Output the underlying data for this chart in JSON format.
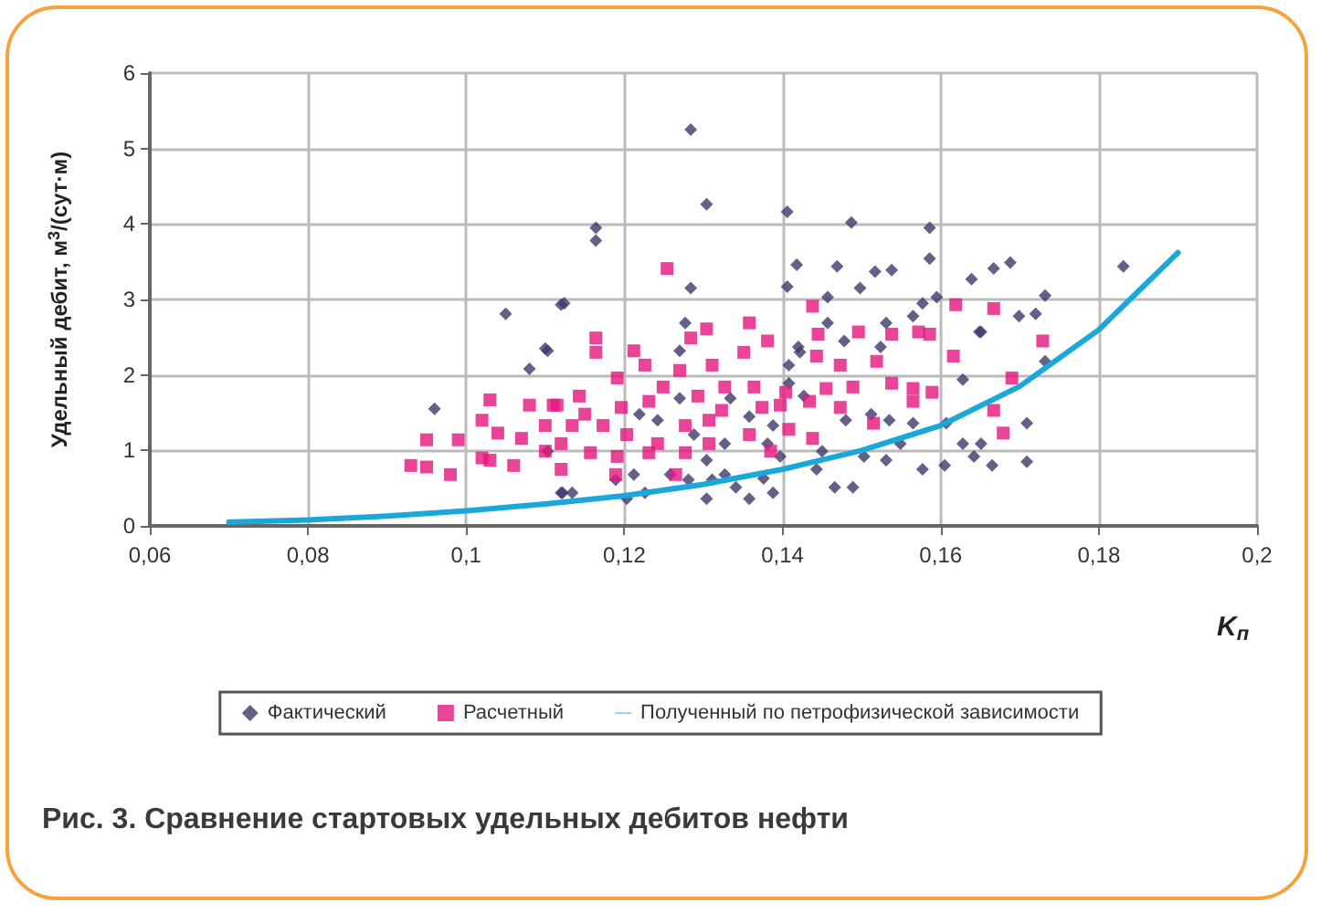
{
  "chart_data": {
    "type": "scatter",
    "title": "Рис. 3. Сравнение стартовых удельных дебитов нефти",
    "xlabel": "K$_{п}$",
    "ylabel": "Удельный дебит, м$^{3}$/(сут·м)",
    "xlim": [
      0.06,
      0.2
    ],
    "ylim": [
      0,
      6
    ],
    "xticks": [
      {
        "value": 0.06,
        "label": "0,06"
      },
      {
        "value": 0.08,
        "label": "0,08"
      },
      {
        "value": 0.1,
        "label": "0,1"
      },
      {
        "value": 0.12,
        "label": "0,12"
      },
      {
        "value": 0.14,
        "label": "0,14"
      },
      {
        "value": 0.16,
        "label": "0,16"
      },
      {
        "value": 0.18,
        "label": "0,18"
      },
      {
        "value": 0.2,
        "label": "0,2"
      }
    ],
    "yticks": [
      0,
      1,
      2,
      3,
      4,
      5,
      6
    ],
    "grid": true,
    "legend": "bottom",
    "series": [
      {
        "name": "Фактический",
        "marker": "diamond",
        "color": "#3d3a6b",
        "x": [
          0.105,
          0.112,
          0.11,
          0.108,
          0.096,
          0.112,
          0.1284,
          0.1304,
          0.1164,
          0.1164,
          0.1406,
          0.1487,
          0.1586,
          0.1586,
          0.1418,
          0.1469,
          0.1517,
          0.1538,
          0.1639,
          0.1284,
          0.1124,
          0.1406,
          0.1498,
          0.1457,
          0.1577,
          0.1595,
          0.1651,
          0.1565,
          0.1277,
          0.1457,
          0.1531,
          0.1103,
          0.127,
          0.1478,
          0.142,
          0.1408,
          0.1524,
          0.1628,
          0.1219,
          0.1288,
          0.1327,
          0.1304,
          0.1327,
          0.1304,
          0.1341,
          0.1376,
          0.1397,
          0.1388,
          0.1358,
          0.1226,
          0.1203,
          0.1122,
          0.1134,
          0.1258,
          0.1281,
          0.1311,
          0.1443,
          0.145,
          0.1466,
          0.1489,
          0.1503,
          0.1531,
          0.1549,
          0.1565,
          0.1577,
          0.1605,
          0.1628,
          0.1642,
          0.1607,
          0.1381,
          0.1358,
          0.1408,
          0.1427,
          0.1422,
          0.1242,
          0.127,
          0.1334,
          0.148,
          0.1512,
          0.1535,
          0.1212,
          0.1189,
          0.1103,
          0.1388,
          0.1831,
          0.1688,
          0.1667,
          0.1732,
          0.1699,
          0.172,
          0.1649,
          0.1732,
          0.1709,
          0.1709,
          0.1665,
          0.1651
        ],
        "values": [
          2.81,
          2.93,
          2.35,
          2.08,
          1.55,
          0.44,
          5.25,
          4.26,
          3.95,
          3.78,
          4.16,
          4.02,
          3.95,
          3.54,
          3.46,
          3.44,
          3.37,
          3.39,
          3.27,
          3.15,
          2.95,
          3.17,
          3.15,
          3.03,
          2.95,
          3.03,
          2.57,
          2.78,
          2.69,
          2.69,
          2.69,
          2.32,
          2.32,
          2.45,
          2.37,
          2.13,
          2.37,
          1.94,
          1.48,
          1.21,
          1.09,
          0.87,
          0.68,
          0.36,
          0.51,
          0.63,
          0.92,
          0.44,
          0.36,
          0.44,
          0.36,
          0.44,
          0.44,
          0.68,
          0.61,
          0.61,
          0.75,
          0.99,
          0.51,
          0.51,
          0.92,
          0.87,
          1.09,
          1.36,
          0.75,
          0.8,
          1.09,
          0.92,
          1.36,
          1.09,
          1.45,
          1.89,
          1.72,
          2.3,
          1.4,
          1.69,
          1.69,
          1.4,
          1.48,
          1.4,
          0.68,
          0.61,
          0.99,
          1.33,
          3.44,
          3.49,
          3.41,
          3.05,
          2.78,
          2.81,
          2.57,
          2.18,
          1.36,
          0.85,
          0.8,
          1.09
        ]
      },
      {
        "name": "Расчетный",
        "marker": "square",
        "color": "#e5157f",
        "x": [
          0.093,
          0.095,
          0.095,
          0.098,
          0.099,
          0.102,
          0.103,
          0.103,
          0.102,
          0.104,
          0.106,
          0.108,
          0.107,
          0.11,
          0.11,
          0.111,
          0.112,
          0.1254,
          0.1438,
          0.1619,
          0.1164,
          0.1164,
          0.1586,
          0.1572,
          0.1616,
          0.1358,
          0.1304,
          0.1284,
          0.1212,
          0.1226,
          0.1191,
          0.127,
          0.1311,
          0.1351,
          0.1381,
          0.1445,
          0.1496,
          0.1538,
          0.1473,
          0.1443,
          0.1519,
          0.1565,
          0.1589,
          0.1538,
          0.1489,
          0.1455,
          0.1404,
          0.1364,
          0.1327,
          0.1293,
          0.1249,
          0.1231,
          0.1196,
          0.115,
          0.1115,
          0.1134,
          0.1173,
          0.1203,
          0.1242,
          0.1277,
          0.1307,
          0.1323,
          0.1374,
          0.1397,
          0.1434,
          0.1473,
          0.1515,
          0.1438,
          0.1408,
          0.1358,
          0.1307,
          0.1277,
          0.1231,
          0.1191,
          0.1157,
          0.112,
          0.1189,
          0.1265,
          0.1385,
          0.1565,
          0.1143,
          0.1667,
          0.1729,
          0.169,
          0.1667,
          0.1679
        ],
        "values": [
          0.8,
          0.78,
          1.14,
          0.68,
          1.14,
          0.9,
          0.87,
          1.67,
          1.4,
          1.23,
          0.8,
          1.6,
          1.16,
          1.33,
          0.99,
          1.6,
          0.75,
          3.41,
          2.91,
          2.93,
          2.49,
          2.3,
          2.54,
          2.57,
          2.25,
          2.69,
          2.61,
          2.49,
          2.32,
          2.13,
          1.96,
          2.06,
          2.13,
          2.3,
          2.45,
          2.54,
          2.57,
          2.54,
          2.13,
          2.25,
          2.18,
          1.82,
          1.77,
          1.89,
          1.84,
          1.82,
          1.77,
          1.84,
          1.84,
          1.72,
          1.84,
          1.65,
          1.57,
          1.48,
          1.6,
          1.33,
          1.33,
          1.21,
          1.09,
          1.33,
          1.4,
          1.53,
          1.57,
          1.6,
          1.65,
          1.57,
          1.36,
          1.16,
          1.28,
          1.21,
          1.09,
          0.97,
          0.97,
          0.92,
          0.97,
          1.09,
          0.68,
          0.68,
          0.99,
          1.65,
          1.72,
          2.88,
          2.45,
          1.96,
          1.53,
          1.23
        ]
      },
      {
        "name": "Полученный по петрофизической зависимости",
        "type": "line",
        "marker": "none",
        "color": "#1aa8db",
        "x": [
          0.07,
          0.08,
          0.09,
          0.1,
          0.11,
          0.12,
          0.13,
          0.14,
          0.15,
          0.16,
          0.17,
          0.18,
          0.19
        ],
        "values": [
          0.05,
          0.08,
          0.13,
          0.2,
          0.29,
          0.4,
          0.55,
          0.75,
          1.0,
          1.33,
          1.85,
          2.6,
          3.62
        ]
      }
    ]
  }
}
